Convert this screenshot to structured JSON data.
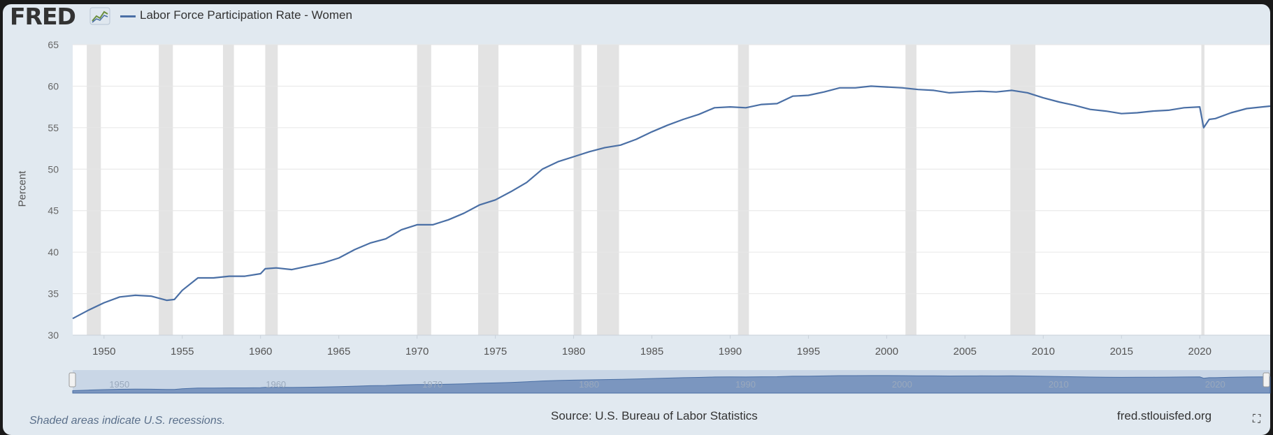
{
  "header": {
    "logo_text": "FRED",
    "legend_label": "Labor Force Participation Rate - Women"
  },
  "footer": {
    "recession_note": "Shaded areas indicate U.S. recessions.",
    "source": "Source: U.S. Bureau of Labor Statistics",
    "site": "fred.stlouisfed.org"
  },
  "navigator": {
    "tick_labels": [
      "1950",
      "1960",
      "1970",
      "1980",
      "1990",
      "2000",
      "2010",
      "2020"
    ]
  },
  "colors": {
    "line": "#4a6fa5",
    "panel": "#e1e9f0",
    "plot_bg": "#ffffff",
    "recession": "#e3e3e3",
    "navigator_fill": "#7b96bf"
  },
  "chart_data": {
    "type": "line",
    "title": "",
    "xlabel": "",
    "ylabel": "Percent",
    "xlim": [
      1948.0,
      2024.5
    ],
    "ylim": [
      30,
      65
    ],
    "yticks": [
      30,
      35,
      40,
      45,
      50,
      55,
      60,
      65
    ],
    "xticks": [
      1950,
      1955,
      1960,
      1965,
      1970,
      1975,
      1980,
      1985,
      1990,
      1995,
      2000,
      2005,
      2010,
      2015,
      2020
    ],
    "grid": true,
    "legend": "top-left",
    "recessions": [
      [
        1948.9,
        1949.8
      ],
      [
        1953.5,
        1954.4
      ],
      [
        1957.6,
        1958.3
      ],
      [
        1960.3,
        1961.1
      ],
      [
        1970.0,
        1970.9
      ],
      [
        1973.9,
        1975.2
      ],
      [
        1980.0,
        1980.5
      ],
      [
        1981.5,
        1982.9
      ],
      [
        1990.5,
        1991.2
      ],
      [
        2001.2,
        2001.9
      ],
      [
        2007.9,
        2009.5
      ],
      [
        2020.1,
        2020.3
      ]
    ],
    "series": [
      {
        "name": "Labor Force Participation Rate - Women",
        "x": [
          1948.0,
          1949.0,
          1950.0,
          1951.0,
          1952.0,
          1953.0,
          1954.0,
          1954.5,
          1955.0,
          1956.0,
          1957.0,
          1958.0,
          1959.0,
          1960.0,
          1960.3,
          1961.0,
          1962.0,
          1963.0,
          1964.0,
          1965.0,
          1966.0,
          1967.0,
          1968.0,
          1969.0,
          1970.0,
          1971.0,
          1972.0,
          1973.0,
          1974.0,
          1975.0,
          1976.0,
          1977.0,
          1978.0,
          1979.0,
          1980.0,
          1981.0,
          1982.0,
          1983.0,
          1984.0,
          1985.0,
          1986.0,
          1987.0,
          1988.0,
          1989.0,
          1990.0,
          1991.0,
          1992.0,
          1993.0,
          1994.0,
          1995.0,
          1996.0,
          1997.0,
          1998.0,
          1999.0,
          2000.0,
          2001.0,
          2002.0,
          2003.0,
          2004.0,
          2005.0,
          2006.0,
          2007.0,
          2008.0,
          2009.0,
          2010.0,
          2011.0,
          2012.0,
          2013.0,
          2014.0,
          2015.0,
          2016.0,
          2017.0,
          2018.0,
          2019.0,
          2020.0,
          2020.25,
          2020.6,
          2021.0,
          2022.0,
          2023.0,
          2024.0,
          2024.5
        ],
        "values": [
          32.0,
          33.0,
          33.9,
          34.6,
          34.8,
          34.7,
          34.2,
          34.3,
          35.4,
          36.9,
          36.9,
          37.1,
          37.1,
          37.4,
          38.0,
          38.1,
          37.9,
          38.3,
          38.7,
          39.3,
          40.3,
          41.1,
          41.6,
          42.7,
          43.3,
          43.3,
          43.9,
          44.7,
          45.7,
          46.3,
          47.3,
          48.4,
          50.0,
          50.9,
          51.5,
          52.1,
          52.6,
          52.9,
          53.6,
          54.5,
          55.3,
          56.0,
          56.6,
          57.4,
          57.5,
          57.4,
          57.8,
          57.9,
          58.8,
          58.9,
          59.3,
          59.8,
          59.8,
          60.0,
          59.9,
          59.8,
          59.6,
          59.5,
          59.2,
          59.3,
          59.4,
          59.3,
          59.5,
          59.2,
          58.6,
          58.1,
          57.7,
          57.2,
          57.0,
          56.7,
          56.8,
          57.0,
          57.1,
          57.4,
          57.5,
          55.0,
          56.0,
          56.1,
          56.8,
          57.3,
          57.5,
          57.6
        ]
      }
    ]
  }
}
